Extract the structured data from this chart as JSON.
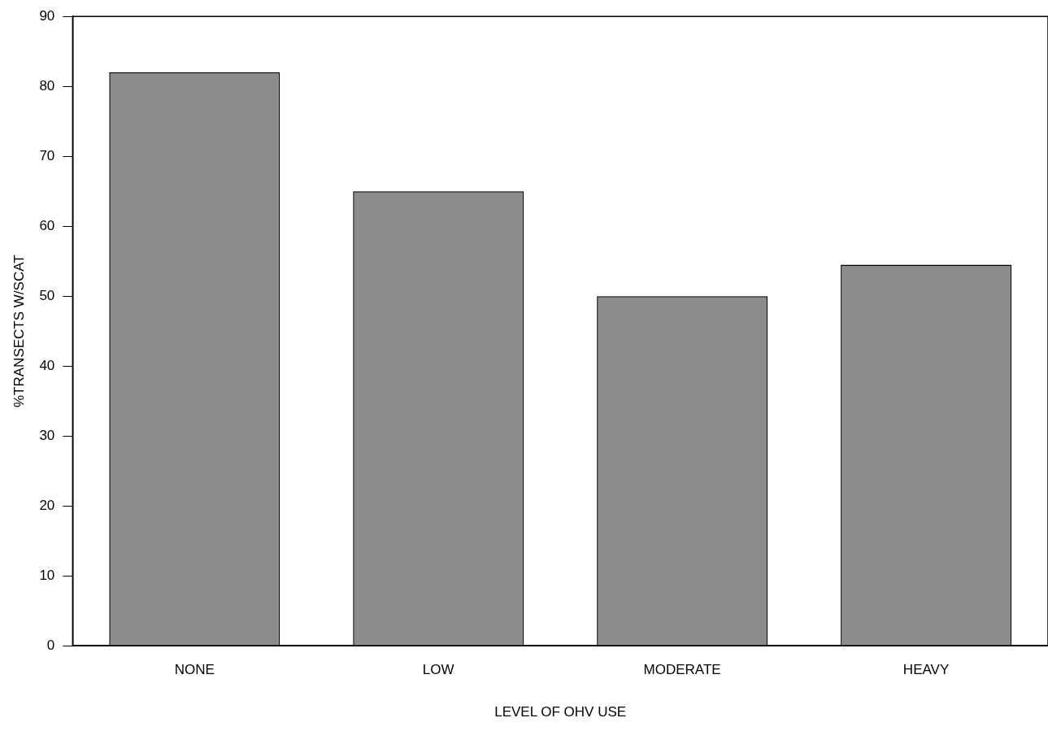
{
  "chart_data": {
    "type": "bar",
    "xlabel": "LEVEL OF OHV USE",
    "ylabel": "%TRANSECTS W/SCAT",
    "categories": [
      "NONE",
      "LOW",
      "MODERATE",
      "HEAVY"
    ],
    "values": [
      82,
      65,
      50,
      54.5
    ],
    "color": "#8c8c8c",
    "ylim": [
      0,
      90
    ],
    "yticks": [
      0,
      10,
      20,
      30,
      40,
      50,
      60,
      70,
      80,
      90
    ],
    "grid": false,
    "legend": false
  }
}
